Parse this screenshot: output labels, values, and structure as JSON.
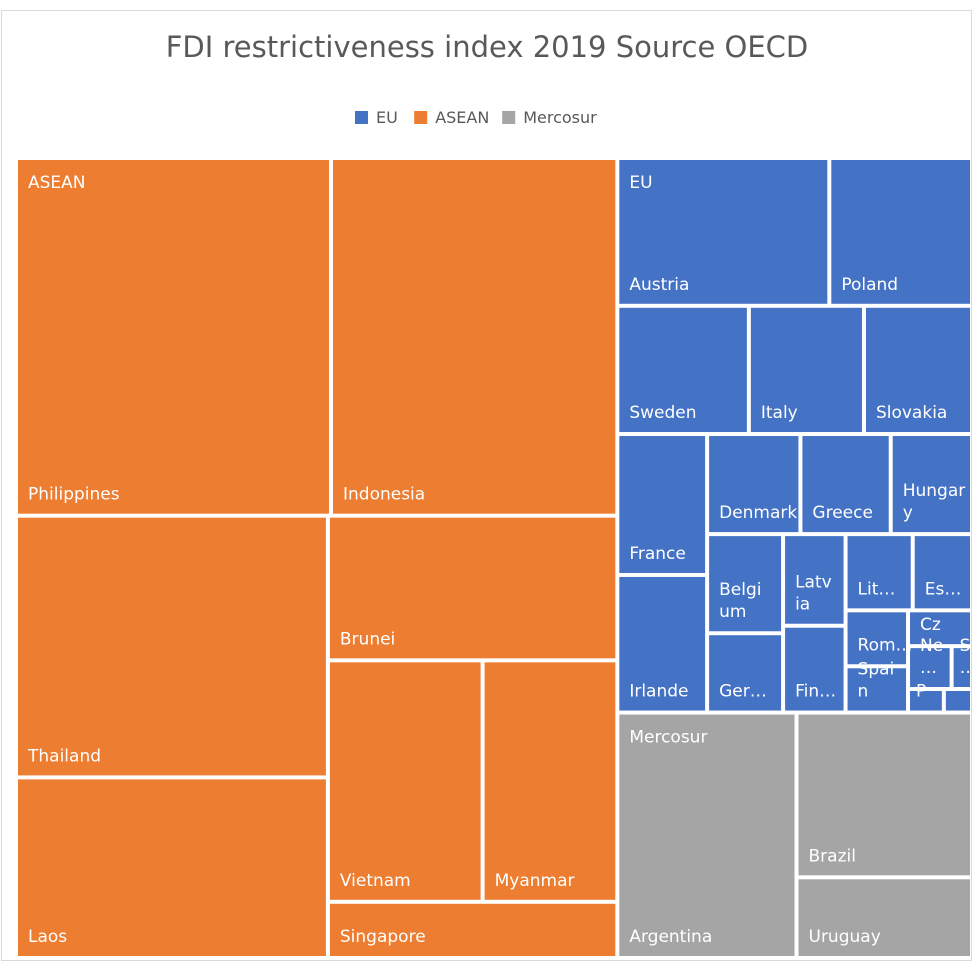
{
  "chart_data": {
    "type": "treemap",
    "title": "FDI restrictiveness index 2019 Source OECD",
    "series": [
      {
        "name": "EU",
        "color": "#4472c4",
        "categories": [
          "Austria",
          "Poland",
          "Sweden",
          "Italy",
          "Slovakia",
          "France",
          "Irlande",
          "Denmark",
          "Greece",
          "Hungary",
          "Belgium",
          "Ger…",
          "Latvia",
          "Fin…",
          "Lit…",
          "Es…",
          "Rom…",
          "Spain",
          "Cz",
          "Ne…",
          "S…",
          "P",
          null
        ],
        "values": [
          0.104,
          0.07,
          0.056,
          0.049,
          0.046,
          0.042,
          0.041,
          0.031,
          0.03,
          0.027,
          0.025,
          0.02,
          0.019,
          0.018,
          0.017,
          0.015,
          0.0116,
          0.0096,
          0.0076,
          0.0062,
          0.0029,
          0.0028,
          0.0022
        ]
      },
      {
        "name": "ASEAN",
        "color": "#ed7d31",
        "categories": [
          "Philippines",
          "Indonesia",
          "Thailand",
          "Laos",
          "Brunei",
          "Vietnam",
          "Myanmar",
          "Singapore"
        ],
        "values": [
          0.374,
          0.34,
          0.271,
          0.187,
          0.139,
          0.124,
          0.108,
          0.054
        ]
      },
      {
        "name": "Mercosur",
        "color": "#a5a5a5",
        "categories": [
          "Argentina",
          "Brazil",
          "Uruguay"
        ],
        "values": [
          0.146,
          0.096,
          0.047
        ]
      }
    ]
  }
}
